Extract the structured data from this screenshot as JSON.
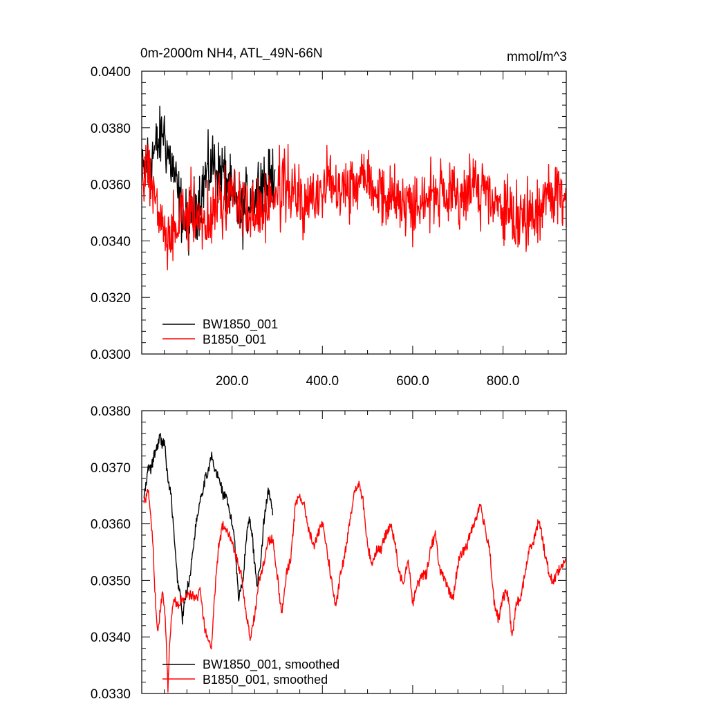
{
  "chart_data": [
    {
      "type": "line",
      "title": "0m-2000m NH4, ATL_49N-66N",
      "units": "mmol/m^3",
      "xlim": [
        0,
        940
      ],
      "ylim": [
        0.03,
        0.04
      ],
      "x_ticks": [
        "200.0",
        "400.0",
        "600.0",
        "800.0"
      ],
      "y_ticks": [
        "0.0300",
        "0.0320",
        "0.0340",
        "0.0360",
        "0.0380",
        "0.0400"
      ],
      "legend_position": "bottom-left",
      "series": [
        {
          "name": "BW1850_001",
          "color": "#000000",
          "x_range": [
            1,
            295
          ],
          "x": [
            1,
            10,
            20,
            30,
            40,
            48,
            55,
            62,
            70,
            80,
            90,
            100,
            110,
            120,
            130,
            140,
            150,
            160,
            170,
            180,
            190,
            200,
            210,
            220,
            230,
            240,
            250,
            260,
            270,
            280,
            290,
            295
          ],
          "values": [
            0.0362,
            0.0368,
            0.037,
            0.0372,
            0.0375,
            0.038,
            0.0373,
            0.0369,
            0.0365,
            0.0356,
            0.035,
            0.0345,
            0.0349,
            0.0352,
            0.0356,
            0.0362,
            0.0365,
            0.0368,
            0.0364,
            0.0365,
            0.036,
            0.0355,
            0.0352,
            0.0349,
            0.0353,
            0.0356,
            0.0355,
            0.036,
            0.0362,
            0.0359,
            0.0363,
            0.0366
          ]
        },
        {
          "name": "B1850_001",
          "color": "#ff0000",
          "x_range": [
            1,
            940
          ],
          "x": [
            1,
            10,
            20,
            30,
            40,
            50,
            60,
            70,
            80,
            90,
            100,
            120,
            140,
            160,
            180,
            200,
            220,
            240,
            260,
            280,
            300,
            320,
            340,
            360,
            380,
            400,
            420,
            440,
            460,
            480,
            500,
            520,
            540,
            560,
            580,
            600,
            620,
            640,
            660,
            680,
            700,
            720,
            740,
            760,
            780,
            800,
            820,
            840,
            860,
            870,
            880,
            900,
            920,
            940
          ],
          "values": [
            0.036,
            0.0368,
            0.0364,
            0.0356,
            0.0347,
            0.0342,
            0.0338,
            0.0345,
            0.0346,
            0.0348,
            0.0349,
            0.0351,
            0.0346,
            0.035,
            0.0355,
            0.0358,
            0.0352,
            0.0351,
            0.035,
            0.0354,
            0.0357,
            0.036,
            0.0357,
            0.0351,
            0.0355,
            0.0358,
            0.0362,
            0.0361,
            0.0359,
            0.0362,
            0.0366,
            0.0357,
            0.0356,
            0.0355,
            0.0354,
            0.0352,
            0.0355,
            0.0357,
            0.0356,
            0.0353,
            0.0356,
            0.0358,
            0.036,
            0.0357,
            0.0352,
            0.0351,
            0.0347,
            0.0349,
            0.0347,
            0.0346,
            0.0352,
            0.0357,
            0.0358,
            0.0355
          ]
        }
      ]
    },
    {
      "type": "line",
      "xlim": [
        0,
        940
      ],
      "ylim": [
        0.033,
        0.038
      ],
      "y_ticks": [
        "0.0330",
        "0.0340",
        "0.0350",
        "0.0360",
        "0.0370",
        "0.0380"
      ],
      "legend_position": "bottom-left",
      "series": [
        {
          "name": "BW1850_001, smoothed",
          "color": "#000000",
          "x": [
            5,
            10,
            15,
            20,
            25,
            30,
            35,
            40,
            45,
            50,
            55,
            60,
            65,
            70,
            75,
            80,
            85,
            90,
            95,
            100,
            105,
            110,
            115,
            120,
            125,
            130,
            135,
            140,
            145,
            150,
            155,
            160,
            165,
            170,
            175,
            180,
            185,
            190,
            195,
            200,
            205,
            210,
            215,
            220,
            225,
            230,
            235,
            240,
            245,
            250,
            255,
            260,
            265,
            270,
            275,
            280,
            285,
            290
          ],
          "values": [
            0.03648,
            0.0367,
            0.03702,
            0.03695,
            0.03712,
            0.03728,
            0.03738,
            0.03755,
            0.03742,
            0.03748,
            0.037,
            0.03668,
            0.0365,
            0.03595,
            0.0354,
            0.03495,
            0.03478,
            0.0343,
            0.0346,
            0.03485,
            0.03498,
            0.0353,
            0.03565,
            0.036,
            0.03622,
            0.03648,
            0.0366,
            0.03678,
            0.03688,
            0.03705,
            0.0372,
            0.03698,
            0.0369,
            0.0368,
            0.03672,
            0.0365,
            0.0365,
            0.03635,
            0.03618,
            0.036,
            0.0358,
            0.0352,
            0.03465,
            0.0349,
            0.03505,
            0.0356,
            0.036,
            0.0361,
            0.03575,
            0.0353,
            0.03495,
            0.0351,
            0.03545,
            0.036,
            0.0363,
            0.03665,
            0.03645,
            0.03615
          ]
        },
        {
          "name": "B1850_001, smoothed",
          "color": "#ff0000",
          "x": [
            5,
            10,
            15,
            20,
            25,
            30,
            35,
            40,
            45,
            50,
            55,
            58,
            62,
            70,
            80,
            90,
            100,
            110,
            120,
            130,
            140,
            150,
            155,
            160,
            170,
            180,
            190,
            200,
            210,
            220,
            230,
            240,
            250,
            260,
            270,
            280,
            290,
            300,
            310,
            320,
            330,
            340,
            350,
            360,
            370,
            380,
            390,
            400,
            410,
            420,
            430,
            440,
            450,
            460,
            470,
            480,
            490,
            500,
            510,
            520,
            530,
            540,
            550,
            560,
            570,
            580,
            590,
            600,
            610,
            620,
            630,
            640,
            650,
            660,
            670,
            680,
            690,
            700,
            710,
            720,
            730,
            740,
            750,
            760,
            770,
            780,
            790,
            800,
            810,
            820,
            830,
            840,
            850,
            860,
            870,
            880,
            890,
            900,
            910,
            920,
            930,
            940
          ],
          "values": [
            0.0364,
            0.03645,
            0.0366,
            0.0362,
            0.0356,
            0.0347,
            0.03405,
            0.0344,
            0.03475,
            0.0346,
            0.0338,
            0.03308,
            0.03395,
            0.0347,
            0.03455,
            0.03468,
            0.0347,
            0.03475,
            0.03465,
            0.03485,
            0.0341,
            0.0339,
            0.03382,
            0.0346,
            0.0356,
            0.036,
            0.0359,
            0.0357,
            0.0354,
            0.0351,
            0.0345,
            0.03395,
            0.0344,
            0.035,
            0.0353,
            0.0357,
            0.03575,
            0.0351,
            0.0344,
            0.0351,
            0.0354,
            0.0363,
            0.0365,
            0.0363,
            0.0359,
            0.0356,
            0.0358,
            0.036,
            0.03555,
            0.035,
            0.0345,
            0.0351,
            0.03545,
            0.03605,
            0.0365,
            0.03672,
            0.0364,
            0.0356,
            0.0353,
            0.03555,
            0.03555,
            0.0358,
            0.036,
            0.0357,
            0.0351,
            0.035,
            0.0354,
            0.0346,
            0.0349,
            0.0351,
            0.0351,
            0.0356,
            0.0358,
            0.0352,
            0.035,
            0.0348,
            0.0347,
            0.0353,
            0.0355,
            0.0356,
            0.0359,
            0.0361,
            0.03635,
            0.0359,
            0.0356,
            0.0346,
            0.0343,
            0.0347,
            0.0348,
            0.034,
            0.0346,
            0.0347,
            0.0352,
            0.0356,
            0.03575,
            0.0361,
            0.0356,
            0.0352,
            0.03495,
            0.03515,
            0.03525,
            0.0354
          ]
        }
      ]
    }
  ]
}
